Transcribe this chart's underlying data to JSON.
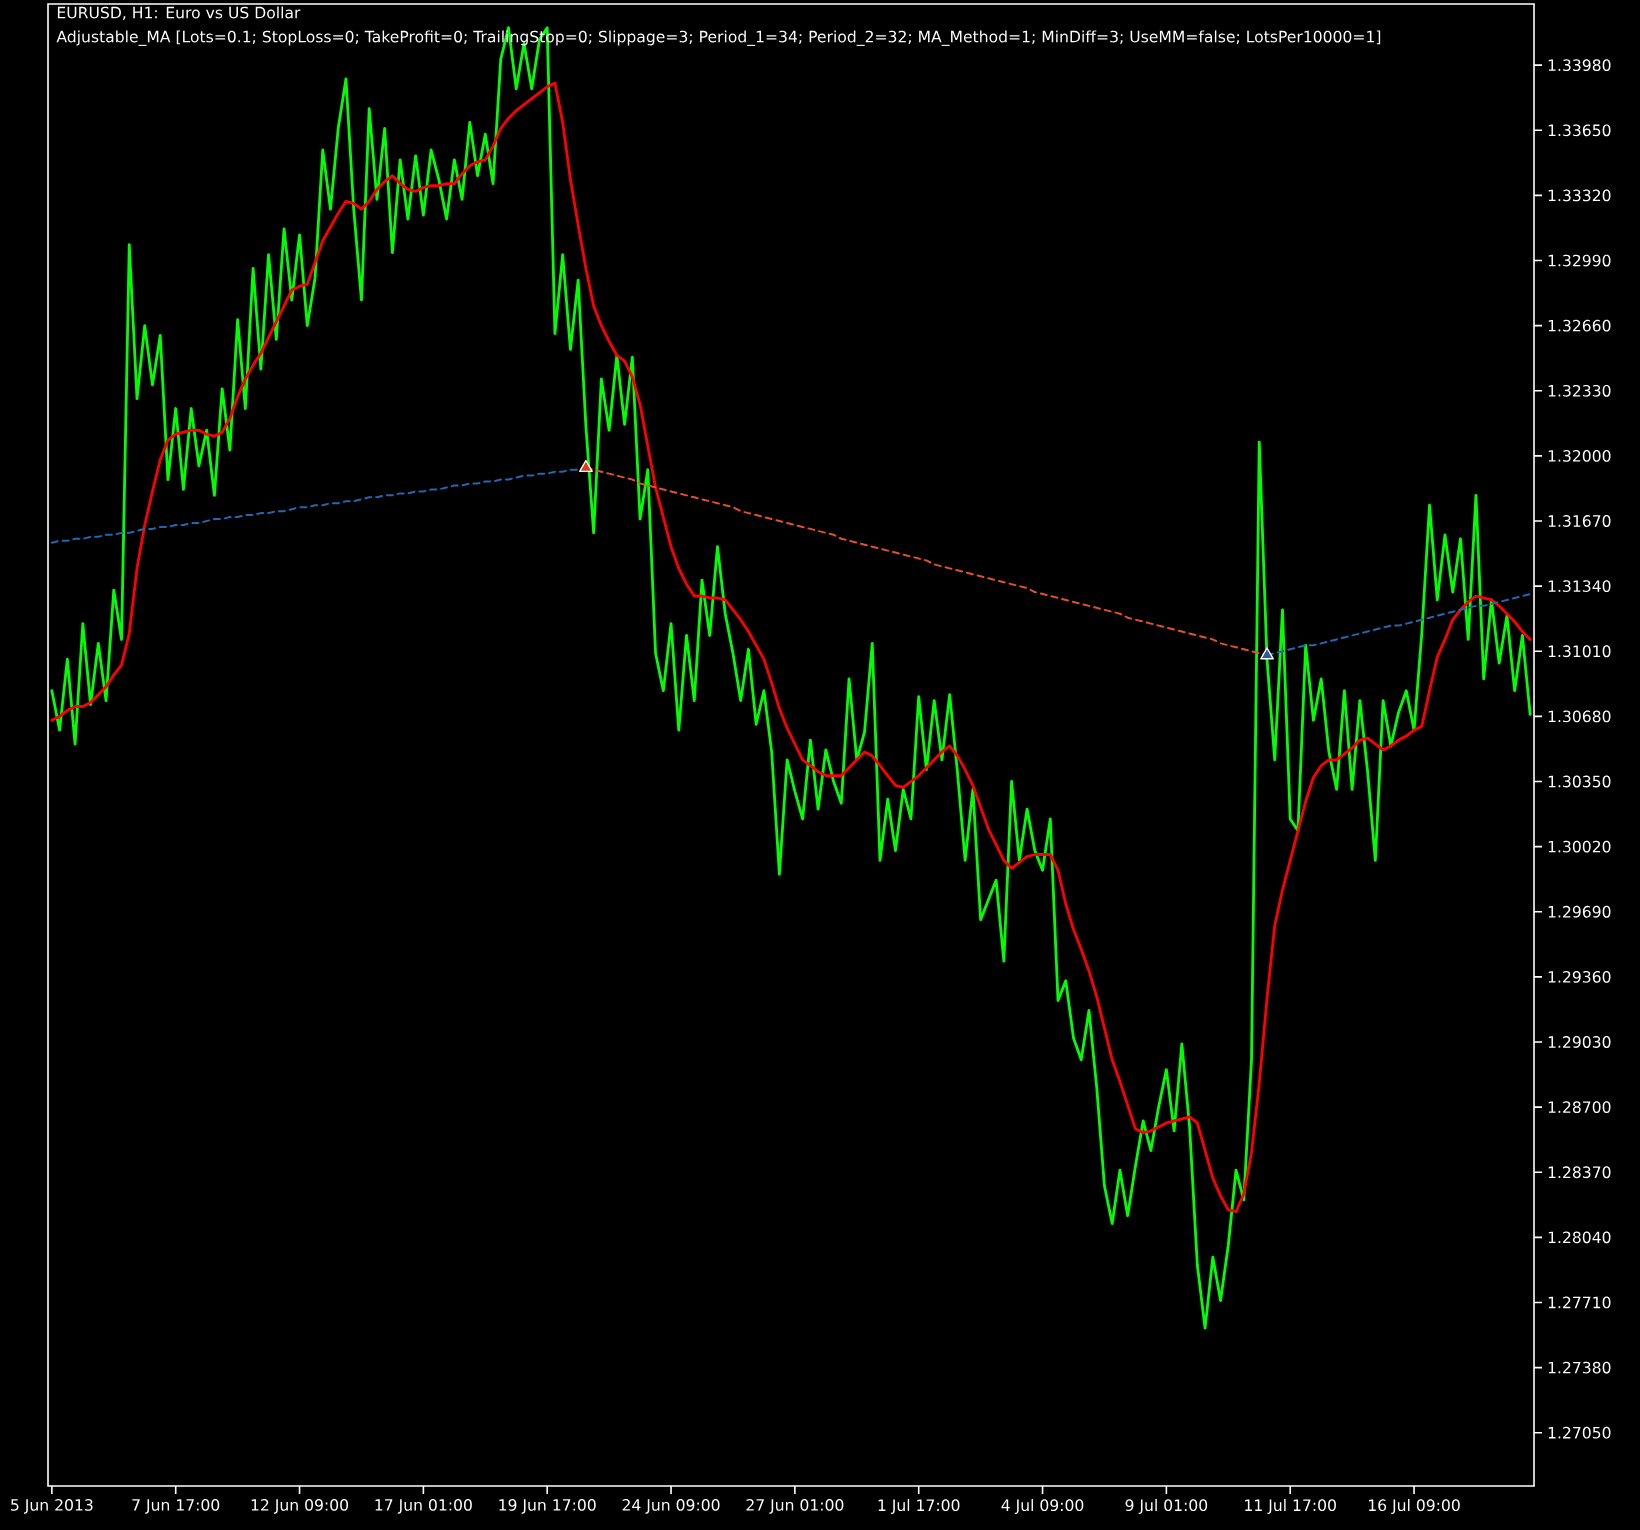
{
  "chart_data": {
    "type": "line",
    "title": "EURUSD, H1: Euro vs US Dollar",
    "subtitle": "Adjustable_MA [Lots=0.1; StopLoss=0; TakeProfit=0; TrailingStop=0; Slippage=3; Period_1=34; Period_2=32; MA_Method=1; MinDiff=3; UseMM=false; LotsPer10000=1]",
    "categories": [
      "5 Jun 2013",
      null,
      null,
      null,
      null,
      null,
      null,
      null,
      null,
      null,
      null,
      null,
      null,
      null,
      null,
      null,
      "7 Jun 17:00",
      null,
      null,
      null,
      null,
      null,
      null,
      null,
      null,
      null,
      null,
      null,
      null,
      null,
      null,
      null,
      "12 Jun 09:00",
      null,
      null,
      null,
      null,
      null,
      null,
      null,
      null,
      null,
      null,
      null,
      null,
      null,
      null,
      null,
      "17 Jun 01:00",
      null,
      null,
      null,
      null,
      null,
      null,
      null,
      null,
      null,
      null,
      null,
      null,
      null,
      null,
      null,
      "19 Jun 17:00",
      null,
      null,
      null,
      null,
      null,
      null,
      null,
      null,
      null,
      null,
      null,
      null,
      null,
      null,
      null,
      "24 Jun 09:00",
      null,
      null,
      null,
      null,
      null,
      null,
      null,
      null,
      null,
      null,
      null,
      null,
      null,
      null,
      null,
      "27 Jun 01:00",
      null,
      null,
      null,
      null,
      null,
      null,
      null,
      null,
      null,
      null,
      null,
      null,
      null,
      null,
      null,
      "1 Jul 17:00",
      null,
      null,
      null,
      null,
      null,
      null,
      null,
      null,
      null,
      null,
      null,
      null,
      null,
      null,
      null,
      "4 Jul 09:00",
      null,
      null,
      null,
      null,
      null,
      null,
      null,
      null,
      null,
      null,
      null,
      null,
      null,
      null,
      null,
      "9 Jul 01:00",
      null,
      null,
      null,
      null,
      null,
      null,
      null,
      null,
      null,
      null,
      null,
      null,
      null,
      null,
      null,
      "11 Jul 17:00",
      null,
      null,
      null,
      null,
      null,
      null,
      null,
      null,
      null,
      null,
      null,
      null,
      null,
      null,
      null,
      "16 Jul 09:00",
      null,
      null,
      null,
      null,
      null,
      null,
      null,
      null,
      null,
      null,
      null,
      null,
      null,
      null,
      null
    ],
    "ylim": [
      1.2678,
      1.3429
    ],
    "yticks": [
      {
        "value": 1.2705,
        "label": "1.27050"
      },
      {
        "value": 1.2738,
        "label": "1.27380"
      },
      {
        "value": 1.2771,
        "label": "1.27710"
      },
      {
        "value": 1.2804,
        "label": "1.28040"
      },
      {
        "value": 1.2837,
        "label": "1.28370"
      },
      {
        "value": 1.287,
        "label": "1.28700"
      },
      {
        "value": 1.2903,
        "label": "1.29030"
      },
      {
        "value": 1.2936,
        "label": "1.29360"
      },
      {
        "value": 1.2969,
        "label": "1.29690"
      },
      {
        "value": 1.3002,
        "label": "1.30020"
      },
      {
        "value": 1.3035,
        "label": "1.30350"
      },
      {
        "value": 1.3068,
        "label": "1.30680"
      },
      {
        "value": 1.3101,
        "label": "1.31010"
      },
      {
        "value": 1.3134,
        "label": "1.31340"
      },
      {
        "value": 1.3167,
        "label": "1.31670"
      },
      {
        "value": 1.32,
        "label": "1.32000"
      },
      {
        "value": 1.3233,
        "label": "1.32330"
      },
      {
        "value": 1.3266,
        "label": "1.32660"
      },
      {
        "value": 1.3299,
        "label": "1.32990"
      },
      {
        "value": 1.3332,
        "label": "1.33320"
      },
      {
        "value": 1.3365,
        "label": "1.33650"
      },
      {
        "value": 1.3398,
        "label": "1.33980"
      }
    ],
    "series": [
      {
        "color": "#00ff00",
        "values": [
          1.3081,
          1.3061,
          1.3097,
          1.3054,
          1.3115,
          1.3074,
          1.3105,
          1.3076,
          1.3132,
          1.3107,
          1.3307,
          1.3229,
          1.3266,
          1.3236,
          1.3261,
          1.3188,
          1.3224,
          1.3183,
          1.3224,
          1.3195,
          1.3213,
          1.318,
          1.3234,
          1.3203,
          1.3269,
          1.3224,
          1.3295,
          1.3244,
          1.3302,
          1.3259,
          1.3315,
          1.3279,
          1.3312,
          1.3266,
          1.329,
          1.3355,
          1.3325,
          1.3366,
          1.3391,
          1.3325,
          1.3279,
          1.3376,
          1.333,
          1.3366,
          1.3303,
          1.335,
          1.332,
          1.3352,
          1.3322,
          1.3355,
          1.334,
          1.332,
          1.335,
          1.333,
          1.3369,
          1.3342,
          1.3363,
          1.3338,
          1.3401,
          1.3417,
          1.3386,
          1.3409,
          1.3386,
          1.3411,
          1.3417,
          1.3262,
          1.3302,
          1.3254,
          1.3289,
          1.3215,
          1.3161,
          1.3239,
          1.3213,
          1.3251,
          1.3216,
          1.325,
          1.3168,
          1.3193,
          1.31,
          1.3081,
          1.3115,
          1.3061,
          1.3109,
          1.3076,
          1.3137,
          1.3109,
          1.3154,
          1.312,
          1.31,
          1.3076,
          1.3102,
          1.3064,
          1.3081,
          1.305,
          1.2988,
          1.3046,
          1.303,
          1.3016,
          1.3056,
          1.3021,
          1.3051,
          1.3035,
          1.3024,
          1.3087,
          1.3046,
          1.306,
          1.3105,
          1.2995,
          1.3026,
          1.3,
          1.3031,
          1.3016,
          1.3078,
          1.3041,
          1.3076,
          1.3046,
          1.3079,
          1.304,
          1.2995,
          1.3031,
          1.2965,
          1.2975,
          1.2985,
          1.2944,
          1.3035,
          1.2995,
          1.3021,
          1.3,
          1.299,
          1.3016,
          1.2924,
          1.2934,
          1.2905,
          1.2894,
          1.2919,
          1.288,
          1.283,
          1.2811,
          1.2838,
          1.2815,
          1.284,
          1.2863,
          1.2848,
          1.287,
          1.2889,
          1.2858,
          1.2902,
          1.286,
          1.279,
          1.2758,
          1.2794,
          1.2772,
          1.28,
          1.2838,
          1.2823,
          1.2894,
          1.3207,
          1.3097,
          1.3046,
          1.3122,
          1.3016,
          1.301,
          1.3104,
          1.3066,
          1.3087,
          1.305,
          1.3031,
          1.3081,
          1.3031,
          1.3076,
          1.304,
          1.2995,
          1.3076,
          1.3053,
          1.307,
          1.3081,
          1.3061,
          1.311,
          1.3175,
          1.3127,
          1.316,
          1.3131,
          1.3158,
          1.3107,
          1.318,
          1.3087,
          1.3127,
          1.3095,
          1.3119,
          1.3081,
          1.3109,
          1.3069
        ]
      },
      {
        "color": "#ff0000",
        "values": [
          1.3066,
          1.3068,
          1.3071,
          1.3073,
          1.3073,
          1.3075,
          1.3079,
          1.3083,
          1.3089,
          1.3094,
          1.311,
          1.3143,
          1.3165,
          1.3182,
          1.3198,
          1.3208,
          1.3211,
          1.3212,
          1.3213,
          1.3213,
          1.3211,
          1.321,
          1.3212,
          1.3219,
          1.323,
          1.3239,
          1.3246,
          1.3252,
          1.326,
          1.3268,
          1.3276,
          1.3284,
          1.3286,
          1.3287,
          1.3298,
          1.3309,
          1.3316,
          1.3323,
          1.3329,
          1.3328,
          1.3325,
          1.3329,
          1.3335,
          1.3339,
          1.3342,
          1.3338,
          1.3335,
          1.3334,
          1.3336,
          1.3337,
          1.3337,
          1.3338,
          1.3338,
          1.3343,
          1.3347,
          1.3349,
          1.335,
          1.3357,
          1.3366,
          1.3371,
          1.3375,
          1.3378,
          1.3381,
          1.3384,
          1.3387,
          1.3389,
          1.3369,
          1.334,
          1.3317,
          1.3295,
          1.3276,
          1.3266,
          1.3258,
          1.3251,
          1.3248,
          1.324,
          1.3226,
          1.3205,
          1.3184,
          1.3169,
          1.3154,
          1.3143,
          1.3135,
          1.3129,
          1.3129,
          1.3128,
          1.3128,
          1.3127,
          1.3122,
          1.3117,
          1.3111,
          1.3104,
          1.3097,
          1.3085,
          1.3072,
          1.3062,
          1.3054,
          1.3046,
          1.3043,
          1.304,
          1.3038,
          1.3038,
          1.3038,
          1.3042,
          1.3046,
          1.305,
          1.3048,
          1.3043,
          1.3038,
          1.3033,
          1.3032,
          1.3035,
          1.3038,
          1.3042,
          1.3046,
          1.305,
          1.3053,
          1.3048,
          1.3041,
          1.3033,
          1.3022,
          1.3011,
          1.3003,
          1.2995,
          1.2991,
          1.2994,
          1.2997,
          1.2998,
          1.2998,
          1.2998,
          1.299,
          1.2973,
          1.296,
          1.295,
          1.2939,
          1.2926,
          1.291,
          1.2894,
          1.2883,
          1.2871,
          1.2859,
          1.2857,
          1.2858,
          1.286,
          1.2862,
          1.2863,
          1.2864,
          1.2865,
          1.2862,
          1.2848,
          1.2834,
          1.2825,
          1.2818,
          1.2817,
          1.2826,
          1.2847,
          1.2882,
          1.2925,
          1.2962,
          1.298,
          1.2995,
          1.301,
          1.3025,
          1.3037,
          1.3043,
          1.3046,
          1.3046,
          1.3049,
          1.3052,
          1.3056,
          1.3057,
          1.3054,
          1.3051,
          1.3053,
          1.3056,
          1.3058,
          1.3061,
          1.3063,
          1.3081,
          1.3098,
          1.3107,
          1.3117,
          1.3122,
          1.3126,
          1.3129,
          1.3128,
          1.3127,
          1.3124,
          1.312,
          1.3116,
          1.3111,
          1.3107
        ]
      },
      {
        "color": "#2466b0",
        "line_style": "dashed",
        "values": [
          1.3156,
          1.3157,
          1.3157,
          1.3158,
          1.3158,
          1.3159,
          1.3159,
          1.316,
          1.316,
          1.3161,
          1.3161,
          1.3162,
          1.3163,
          1.3163,
          1.3164,
          1.3164,
          1.3165,
          1.3165,
          1.3166,
          1.3166,
          1.3167,
          1.3168,
          1.3168,
          1.3169,
          1.3169,
          1.317,
          1.317,
          1.3171,
          1.3171,
          1.3172,
          1.3172,
          1.3173,
          1.3174,
          1.3174,
          1.3175,
          1.3175,
          1.3176,
          1.3176,
          1.3177,
          1.3177,
          1.3178,
          1.3179,
          1.3179,
          1.318,
          1.318,
          1.3181,
          1.3181,
          1.3182,
          1.3182,
          1.3183,
          1.3183,
          1.3184,
          1.3185,
          1.3185,
          1.3186,
          1.3186,
          1.3187,
          1.3187,
          1.3188,
          1.3188,
          1.3189,
          1.319,
          1.319,
          1.3191,
          1.3191,
          1.3192,
          1.3192,
          1.3193,
          1.3193,
          1.3194,
          null,
          null,
          null,
          null,
          null,
          null,
          null,
          null,
          null,
          null,
          null,
          null,
          null,
          null,
          null,
          null,
          null,
          null,
          null,
          null,
          null,
          null,
          null,
          null,
          null,
          null,
          null,
          null,
          null,
          null,
          null,
          null,
          null,
          null,
          null,
          null,
          null,
          null,
          null,
          null,
          null,
          null,
          null,
          null,
          null,
          null,
          null,
          null,
          null,
          null,
          null,
          null,
          null,
          null,
          null,
          null,
          null,
          null,
          null,
          null,
          null,
          null,
          null,
          null,
          null,
          null,
          null,
          null,
          null,
          null,
          null,
          null,
          null,
          null,
          null,
          null,
          null,
          null,
          null,
          null,
          null,
          null,
          null,
          null,
          null,
          null,
          null,
          1.3099,
          1.31,
          1.3101,
          1.3102,
          1.3103,
          1.3104,
          1.3104,
          1.3105,
          1.3106,
          1.3107,
          1.3108,
          1.3109,
          1.311,
          1.3111,
          1.3112,
          1.3113,
          1.3114,
          1.3114,
          1.3115,
          1.3116,
          1.3117,
          1.3118,
          1.3119,
          1.312,
          1.3121,
          1.3122,
          1.3123,
          1.3124,
          1.3124,
          1.3125,
          1.3126,
          1.3127,
          1.3128,
          1.3129,
          1.313
        ]
      },
      {
        "color": "#e0502a",
        "line_style": "dashed",
        "values": [
          null,
          null,
          null,
          null,
          null,
          null,
          null,
          null,
          null,
          null,
          null,
          null,
          null,
          null,
          null,
          null,
          null,
          null,
          null,
          null,
          null,
          null,
          null,
          null,
          null,
          null,
          null,
          null,
          null,
          null,
          null,
          null,
          null,
          null,
          null,
          null,
          null,
          null,
          null,
          null,
          null,
          null,
          null,
          null,
          null,
          null,
          null,
          null,
          null,
          null,
          null,
          null,
          null,
          null,
          null,
          null,
          null,
          null,
          null,
          null,
          null,
          null,
          null,
          null,
          null,
          null,
          null,
          null,
          null,
          1.3194,
          1.3193,
          1.3192,
          1.3191,
          1.319,
          1.3189,
          1.3188,
          1.3186,
          1.3185,
          1.3184,
          1.3183,
          1.3182,
          1.3181,
          1.318,
          1.3179,
          1.3178,
          1.3177,
          1.3176,
          1.3175,
          1.3174,
          1.3172,
          1.3171,
          1.317,
          1.3169,
          1.3168,
          1.3167,
          1.3166,
          1.3165,
          1.3164,
          1.3163,
          1.3162,
          1.3161,
          1.316,
          1.3158,
          1.3157,
          1.3156,
          1.3155,
          1.3154,
          1.3153,
          1.3152,
          1.3151,
          1.315,
          1.3149,
          1.3148,
          1.3147,
          1.3145,
          1.3144,
          1.3143,
          1.3142,
          1.3141,
          1.314,
          1.3139,
          1.3138,
          1.3137,
          1.3136,
          1.3135,
          1.3134,
          1.3133,
          1.3131,
          1.313,
          1.3129,
          1.3128,
          1.3127,
          1.3126,
          1.3125,
          1.3124,
          1.3123,
          1.3122,
          1.3121,
          1.312,
          1.3118,
          1.3117,
          1.3116,
          1.3115,
          1.3114,
          1.3113,
          1.3112,
          1.3111,
          1.311,
          1.3109,
          1.3108,
          1.3107,
          1.3105,
          1.3104,
          1.3103,
          1.3102,
          1.3101,
          1.31,
          1.3099,
          null,
          null,
          null,
          null,
          null,
          null,
          null,
          null,
          null,
          null,
          null,
          null,
          null,
          null,
          null,
          null,
          null,
          null,
          null,
          null,
          null,
          null,
          null,
          null,
          null,
          null,
          null,
          null,
          null,
          null,
          null,
          null,
          null,
          null
        ]
      },
      {
        "type": "scatter",
        "color": "#d8401c",
        "marker": "triangle",
        "values": [
          null,
          null,
          null,
          null,
          null,
          null,
          null,
          null,
          null,
          null,
          null,
          null,
          null,
          null,
          null,
          null,
          null,
          null,
          null,
          null,
          null,
          null,
          null,
          null,
          null,
          null,
          null,
          null,
          null,
          null,
          null,
          null,
          null,
          null,
          null,
          null,
          null,
          null,
          null,
          null,
          null,
          null,
          null,
          null,
          null,
          null,
          null,
          null,
          null,
          null,
          null,
          null,
          null,
          null,
          null,
          null,
          null,
          null,
          null,
          null,
          null,
          null,
          null,
          null,
          null,
          null,
          null,
          null,
          null,
          1.3194,
          null,
          null,
          null,
          null,
          null,
          null,
          null,
          null,
          null,
          null,
          null,
          null,
          null,
          null,
          null,
          null,
          null,
          null,
          null,
          null,
          null,
          null,
          null,
          null,
          null,
          null,
          null,
          null,
          null,
          null,
          null,
          null,
          null,
          null,
          null,
          null,
          null,
          null,
          null,
          null,
          null,
          null,
          null,
          null,
          null,
          null,
          null,
          null,
          null,
          null,
          null,
          null,
          null,
          null,
          null,
          null,
          null,
          null,
          null,
          null,
          null,
          null,
          null,
          null,
          null,
          null,
          null,
          null,
          null,
          null,
          null,
          null,
          null,
          null,
          null,
          null,
          null,
          null,
          null,
          null,
          null,
          null,
          null,
          null,
          null,
          null,
          null,
          null,
          null,
          null,
          null,
          null,
          null,
          null,
          null,
          null,
          null,
          null,
          null,
          null,
          null,
          null,
          null,
          null,
          null,
          null,
          null,
          null,
          null,
          null,
          null,
          null,
          null,
          null,
          null,
          null,
          null,
          null,
          null,
          null,
          null,
          null
        ]
      },
      {
        "type": "scatter",
        "color": "#2a5aa0",
        "marker": "triangle",
        "values": [
          null,
          null,
          null,
          null,
          null,
          null,
          null,
          null,
          null,
          null,
          null,
          null,
          null,
          null,
          null,
          null,
          null,
          null,
          null,
          null,
          null,
          null,
          null,
          null,
          null,
          null,
          null,
          null,
          null,
          null,
          null,
          null,
          null,
          null,
          null,
          null,
          null,
          null,
          null,
          null,
          null,
          null,
          null,
          null,
          null,
          null,
          null,
          null,
          null,
          null,
          null,
          null,
          null,
          null,
          null,
          null,
          null,
          null,
          null,
          null,
          null,
          null,
          null,
          null,
          null,
          null,
          null,
          null,
          null,
          null,
          null,
          null,
          null,
          null,
          null,
          null,
          null,
          null,
          null,
          null,
          null,
          null,
          null,
          null,
          null,
          null,
          null,
          null,
          null,
          null,
          null,
          null,
          null,
          null,
          null,
          null,
          null,
          null,
          null,
          null,
          null,
          null,
          null,
          null,
          null,
          null,
          null,
          null,
          null,
          null,
          null,
          null,
          null,
          null,
          null,
          null,
          null,
          null,
          null,
          null,
          null,
          null,
          null,
          null,
          null,
          null,
          null,
          null,
          null,
          null,
          null,
          null,
          null,
          null,
          null,
          null,
          null,
          null,
          null,
          null,
          null,
          null,
          null,
          null,
          null,
          null,
          null,
          null,
          null,
          null,
          null,
          null,
          null,
          null,
          null,
          null,
          null,
          1.3099,
          null,
          null,
          null,
          null,
          null,
          null,
          null,
          null,
          null,
          null,
          null,
          null,
          null,
          null,
          null,
          null,
          null,
          null,
          null,
          null,
          null,
          null,
          null,
          null,
          null,
          null,
          null,
          null,
          null,
          null,
          null,
          null,
          null,
          null
        ]
      }
    ]
  }
}
